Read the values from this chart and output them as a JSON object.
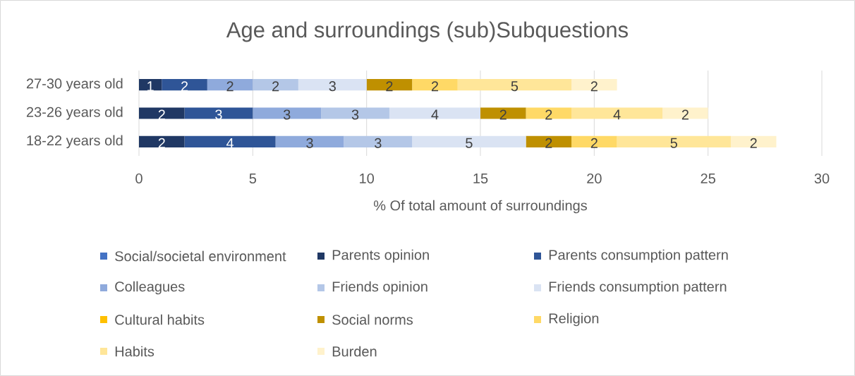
{
  "chart_data": {
    "type": "bar",
    "orientation": "horizontal",
    "stacked": true,
    "title": "Age and surroundings (sub)Subquestions",
    "xlabel": "% Of total amount of surroundings",
    "categories": [
      "27-30 years old",
      "23-26 years old",
      "18-22 years old"
    ],
    "xlim": [
      0,
      30
    ],
    "xticks": [
      0,
      5,
      10,
      15,
      20,
      25,
      30
    ],
    "grid": "x",
    "legend": "bottom",
    "data_labels": true,
    "series": [
      {
        "name": "Social/societal environment",
        "color": "#4472c4",
        "values": [
          null,
          null,
          null
        ]
      },
      {
        "name": "Parents opinion",
        "color": "#203864",
        "values": [
          1,
          2,
          2
        ]
      },
      {
        "name": "Parents consumption pattern",
        "color": "#2f5597",
        "values": [
          2,
          3,
          4
        ]
      },
      {
        "name": "Colleagues",
        "color": "#8faadc",
        "values": [
          2,
          3,
          3
        ]
      },
      {
        "name": "Friends opinion",
        "color": "#b4c7e7",
        "values": [
          2,
          3,
          3
        ]
      },
      {
        "name": "Friends consumption pattern",
        "color": "#dae3f3",
        "values": [
          3,
          4,
          5
        ]
      },
      {
        "name": "Cultural habits",
        "color": "#ffc000",
        "values": [
          null,
          null,
          null
        ]
      },
      {
        "name": "Social norms",
        "color": "#bf9000",
        "values": [
          2,
          2,
          2
        ]
      },
      {
        "name": "Religion",
        "color": "#ffd966",
        "values": [
          2,
          2,
          2
        ]
      },
      {
        "name": "Habits",
        "color": "#ffe699",
        "values": [
          5,
          4,
          5
        ]
      },
      {
        "name": "Burden",
        "color": "#fff2cc",
        "values": [
          2,
          2,
          2
        ]
      }
    ]
  }
}
